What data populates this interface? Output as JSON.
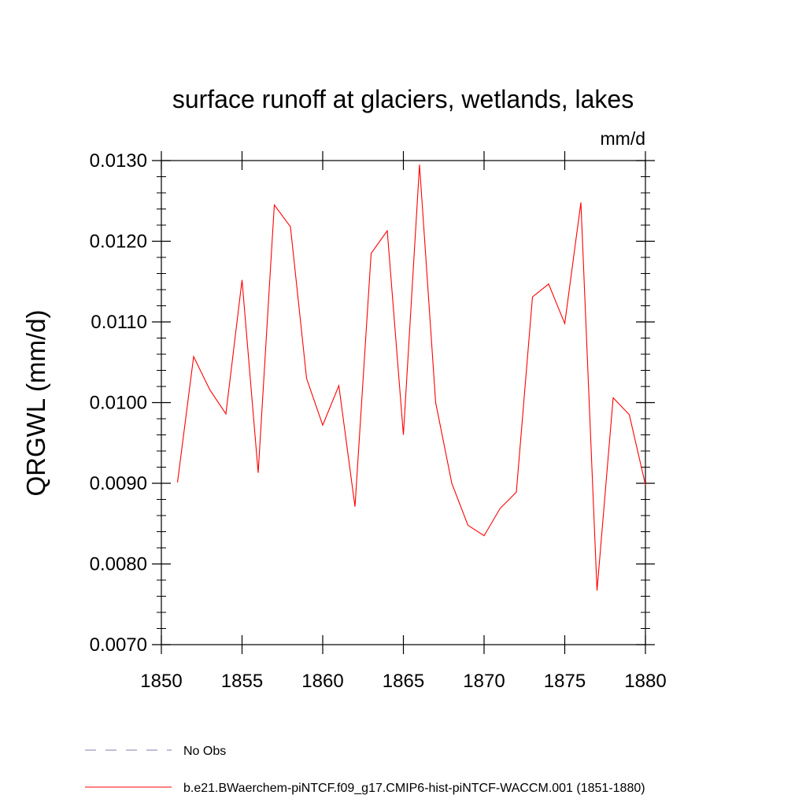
{
  "chart_data": {
    "type": "line",
    "title": "surface runoff at glaciers, wetlands, lakes",
    "units": "mm/d",
    "ylabel": "QRGWL  (mm/d)",
    "xlabel": "",
    "xlim": [
      1850,
      1880
    ],
    "ylim": [
      0.007,
      0.013
    ],
    "x_ticks": [
      1850,
      1855,
      1860,
      1865,
      1870,
      1875,
      1880
    ],
    "x_tick_labels": [
      "1850",
      "1855",
      "1860",
      "1865",
      "1870",
      "1875",
      "1880"
    ],
    "y_ticks": [
      0.007,
      0.008,
      0.009,
      0.01,
      0.011,
      0.012,
      0.013
    ],
    "y_tick_labels": [
      "0.0070",
      "0.0080",
      "0.0090",
      "0.0100",
      "0.0110",
      "0.0120",
      "0.0130"
    ],
    "grid": false,
    "legend_position": "bottom",
    "series": [
      {
        "name": "b.e21.BWaerchem-piNTCF.f09_g17.CMIP6-hist-piNTCF-WACCM.001 (1851-1880)",
        "color": "#ff0000",
        "style": "solid",
        "x": [
          1851,
          1852,
          1853,
          1854,
          1855,
          1856,
          1857,
          1858,
          1859,
          1860,
          1861,
          1862,
          1863,
          1864,
          1865,
          1866,
          1867,
          1868,
          1869,
          1870,
          1871,
          1872,
          1873,
          1874,
          1875,
          1876,
          1877,
          1878,
          1879,
          1880
        ],
        "values": [
          0.00901,
          0.01057,
          0.01016,
          0.00986,
          0.01152,
          0.00913,
          0.01245,
          0.01218,
          0.0103,
          0.00972,
          0.01021,
          0.00871,
          0.01185,
          0.01213,
          0.0096,
          0.01295,
          0.01,
          0.009,
          0.00848,
          0.00835,
          0.00869,
          0.00889,
          0.01131,
          0.01147,
          0.01098,
          0.01248,
          0.00767,
          0.01006,
          0.00985,
          0.00898
        ]
      },
      {
        "name": "No Obs",
        "color": "#7f7fb3",
        "style": "dashed",
        "x": [],
        "values": []
      }
    ]
  }
}
